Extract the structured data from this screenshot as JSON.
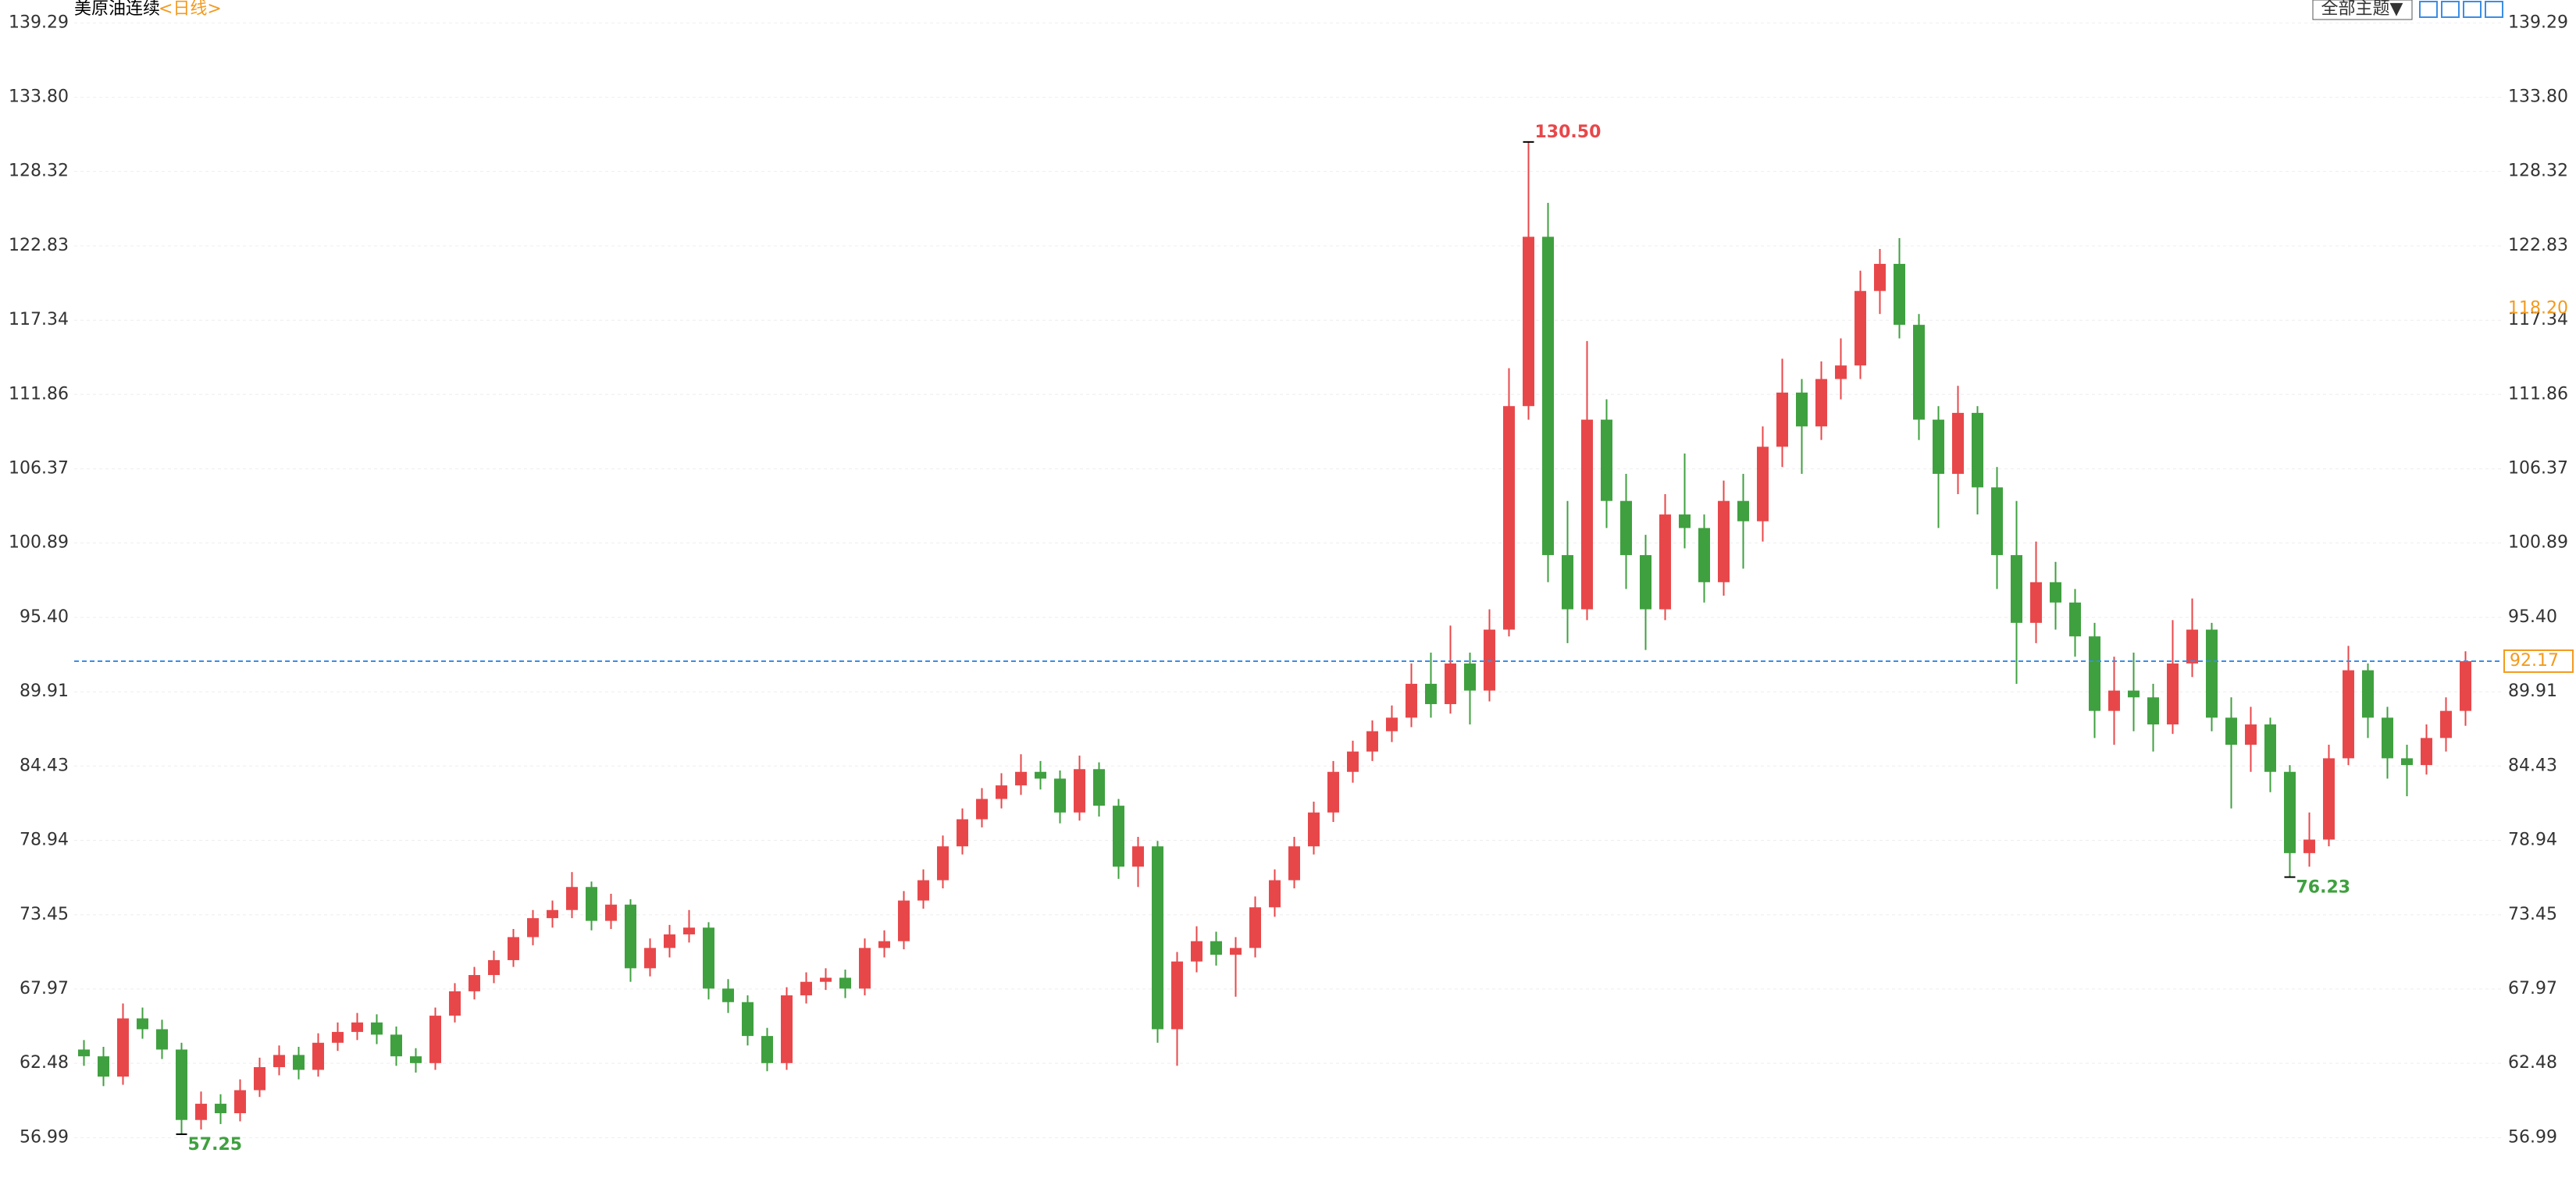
{
  "header": {
    "symbol": "美原油连续",
    "period": "<日线>",
    "theme_button": "全部主题▼"
  },
  "chart_data": {
    "type": "candlestick",
    "ylim": [
      53.5,
      140
    ],
    "yticks": [
      {
        "value": 139.29,
        "label": "139.29"
      },
      {
        "value": 133.8,
        "label": "133.80"
      },
      {
        "value": 128.32,
        "label": "128.32"
      },
      {
        "value": 122.83,
        "label": "122.83"
      },
      {
        "value": 117.34,
        "label": "117.34"
      },
      {
        "value": 111.86,
        "label": "111.86"
      },
      {
        "value": 106.37,
        "label": "106.37"
      },
      {
        "value": 100.89,
        "label": "100.89"
      },
      {
        "value": 95.4,
        "label": "95.40"
      },
      {
        "value": 89.91,
        "label": "89.91"
      },
      {
        "value": 84.43,
        "label": "84.43"
      },
      {
        "value": 78.94,
        "label": "78.94"
      },
      {
        "value": 73.45,
        "label": "73.45"
      },
      {
        "value": 67.97,
        "label": "67.97"
      },
      {
        "value": 62.48,
        "label": "62.48"
      },
      {
        "value": 56.99,
        "label": "56.99"
      }
    ],
    "grid": true,
    "up_color": "#e8474a",
    "down_color": "#3fa03f",
    "open": [
      63.5,
      63.0,
      61.5,
      65.8,
      65.0,
      63.5,
      58.3,
      59.5,
      58.8,
      60.5,
      62.2,
      63.1,
      62.0,
      64.0,
      64.8,
      65.5,
      64.6,
      63.0,
      62.5,
      66.0,
      67.8,
      69.0,
      70.1,
      71.8,
      73.2,
      73.8,
      75.5,
      73.0,
      74.2,
      69.5,
      71.0,
      72.0,
      72.5,
      68.0,
      67.0,
      64.5,
      62.5,
      67.5,
      68.5,
      68.8,
      68.0,
      71.0,
      71.5,
      74.5,
      76.0,
      78.5,
      80.5,
      82.0,
      83.0,
      84.0,
      83.5,
      81.0,
      84.2,
      81.5,
      77.0,
      78.5,
      65.0,
      70.0,
      71.5,
      70.5,
      71.0,
      74.0,
      76.0,
      78.5,
      81.0,
      84.0,
      85.5,
      87.0,
      88.0,
      90.5,
      89.0,
      92.0,
      90.0,
      94.5,
      111.0,
      123.5,
      100.0,
      96.0,
      110.0,
      104.0,
      100.0,
      96.0,
      103.0,
      102.0,
      98.0,
      104.0,
      102.5,
      108.0,
      112.0,
      109.5,
      113.0,
      114.0,
      119.5,
      121.5,
      117.0,
      110.0,
      106.0,
      110.5,
      105.0,
      100.0,
      95.0,
      98.0,
      96.5,
      94.0,
      88.5,
      90.0,
      89.5,
      87.5,
      92.0,
      94.5,
      88.0,
      86.0,
      87.5,
      84.0,
      78.0,
      79.0,
      85.0,
      91.5,
      88.0,
      85.0,
      84.5,
      86.5,
      88.5
    ],
    "high": [
      64.2,
      63.7,
      66.9,
      66.6,
      65.7,
      64.0,
      60.4,
      60.2,
      61.3,
      62.9,
      63.8,
      63.7,
      64.7,
      65.5,
      66.2,
      66.1,
      65.2,
      63.6,
      66.6,
      68.4,
      69.6,
      70.8,
      72.4,
      73.8,
      74.5,
      76.6,
      75.9,
      75.0,
      74.6,
      71.7,
      72.7,
      73.8,
      72.9,
      68.7,
      67.5,
      65.1,
      68.1,
      69.2,
      69.5,
      69.4,
      71.7,
      72.3,
      75.2,
      76.8,
      79.3,
      81.3,
      82.8,
      83.9,
      85.3,
      84.8,
      84.1,
      85.2,
      84.7,
      82.0,
      79.2,
      78.9,
      70.7,
      72.6,
      72.2,
      71.8,
      74.8,
      76.8,
      79.2,
      81.8,
      84.8,
      86.3,
      87.8,
      88.9,
      92.0,
      92.8,
      94.8,
      92.8,
      96.0,
      113.8,
      130.5,
      126.0,
      104.0,
      115.8,
      111.5,
      106.0,
      101.5,
      104.5,
      107.5,
      103.0,
      105.5,
      106.0,
      109.5,
      114.5,
      113.0,
      114.3,
      116.0,
      121.0,
      122.6,
      123.4,
      117.8,
      111.0,
      112.5,
      111.0,
      106.5,
      104.0,
      101.0,
      99.5,
      97.5,
      95.0,
      92.5,
      92.8,
      90.5,
      95.2,
      96.8,
      95.0,
      89.5,
      88.8,
      88.0,
      84.5,
      81.0,
      86.0,
      93.3,
      92.0,
      88.8,
      86.0,
      87.5,
      89.5,
      92.9
    ],
    "low": [
      62.3,
      60.8,
      60.9,
      64.3,
      62.8,
      57.25,
      57.6,
      58.0,
      58.2,
      60.0,
      61.6,
      61.3,
      61.5,
      63.4,
      64.2,
      63.9,
      62.3,
      61.8,
      62.0,
      65.5,
      67.2,
      68.4,
      69.6,
      71.2,
      72.5,
      73.2,
      72.3,
      72.4,
      68.5,
      68.9,
      70.3,
      71.4,
      67.2,
      66.2,
      63.8,
      61.9,
      62.0,
      66.9,
      67.9,
      67.3,
      67.5,
      70.3,
      70.9,
      73.9,
      75.4,
      77.9,
      79.9,
      81.3,
      82.3,
      82.7,
      80.2,
      80.4,
      80.7,
      76.1,
      75.5,
      64.0,
      62.3,
      69.2,
      69.7,
      67.4,
      70.3,
      73.3,
      75.4,
      77.9,
      80.3,
      83.2,
      84.8,
      86.2,
      87.3,
      88.0,
      88.3,
      87.5,
      89.2,
      94.0,
      110.0,
      98.0,
      93.5,
      95.2,
      102.0,
      97.5,
      93.0,
      95.2,
      100.5,
      96.5,
      97.0,
      99.0,
      101.0,
      106.5,
      106.0,
      108.5,
      111.5,
      113.0,
      117.8,
      116.0,
      108.5,
      102.0,
      104.5,
      103.0,
      97.5,
      90.5,
      93.5,
      94.5,
      92.5,
      86.5,
      86.0,
      87.0,
      85.5,
      86.8,
      91.0,
      87.0,
      81.3,
      84.0,
      82.5,
      76.23,
      77.0,
      78.5,
      84.5,
      86.5,
      83.5,
      82.2,
      83.8,
      85.5,
      87.4
    ],
    "close": [
      63.0,
      61.5,
      65.8,
      65.0,
      63.5,
      58.3,
      59.5,
      58.8,
      60.5,
      62.2,
      63.1,
      62.0,
      64.0,
      64.8,
      65.5,
      64.6,
      63.0,
      62.5,
      66.0,
      67.8,
      69.0,
      70.1,
      71.8,
      73.2,
      73.8,
      75.5,
      73.0,
      74.2,
      69.5,
      71.0,
      72.0,
      72.5,
      68.0,
      67.0,
      64.5,
      62.5,
      67.5,
      68.5,
      68.8,
      68.0,
      71.0,
      71.5,
      74.5,
      76.0,
      78.5,
      80.5,
      82.0,
      83.0,
      84.0,
      83.5,
      81.0,
      84.2,
      81.5,
      77.0,
      78.5,
      65.0,
      70.0,
      71.5,
      70.5,
      71.0,
      74.0,
      76.0,
      78.5,
      81.0,
      84.0,
      85.5,
      87.0,
      88.0,
      90.5,
      89.0,
      92.0,
      90.0,
      94.5,
      111.0,
      123.5,
      100.0,
      96.0,
      110.0,
      104.0,
      100.0,
      96.0,
      103.0,
      102.0,
      98.0,
      104.0,
      102.5,
      108.0,
      112.0,
      109.5,
      113.0,
      114.0,
      119.5,
      121.5,
      117.0,
      110.0,
      106.0,
      110.5,
      105.0,
      100.0,
      95.0,
      98.0,
      96.5,
      94.0,
      88.5,
      90.0,
      89.5,
      87.5,
      92.0,
      94.5,
      88.0,
      86.0,
      87.5,
      84.0,
      78.0,
      79.0,
      85.0,
      91.5,
      88.0,
      85.0,
      84.5,
      86.5,
      88.5,
      92.17
    ],
    "extremes": [
      {
        "side": "high",
        "value": 130.5,
        "label": "130.50",
        "color": "#e8474a"
      },
      {
        "side": "low",
        "value": 57.25,
        "label": "57.25",
        "color": "#3fa03f"
      },
      {
        "side": "low",
        "value": 76.23,
        "label": "76.23",
        "color": "#3fa03f"
      }
    ],
    "last_price": {
      "value": 92.17,
      "label": "92.17",
      "color": "#f39a1e",
      "line_color": "#3a8ee6"
    },
    "marker_price": {
      "value": 118.2,
      "label": "118.20",
      "color": "#f39a1e"
    }
  }
}
